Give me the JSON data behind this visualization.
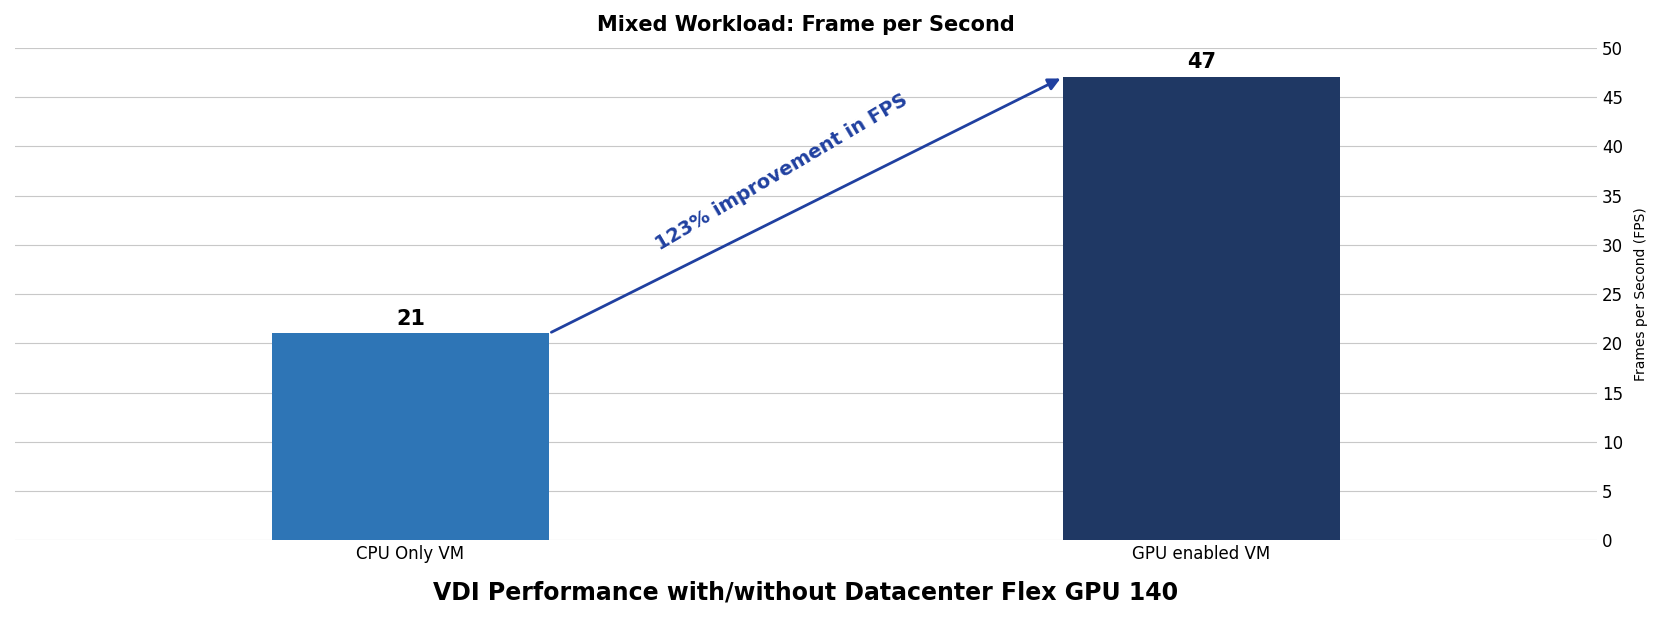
{
  "categories": [
    "CPU Only VM",
    "GPU enabled VM"
  ],
  "values": [
    21,
    47
  ],
  "bar_colors": [
    "#2E75B6",
    "#1F3864"
  ],
  "title": "Mixed Workload: Frame per Second",
  "xlabel": "VDI Performance with/without Datacenter Flex GPU 140",
  "ylabel": "Frames per Second (FPS)",
  "ylim": [
    0,
    50
  ],
  "yticks": [
    0,
    5,
    10,
    15,
    20,
    25,
    30,
    35,
    40,
    45,
    50
  ],
  "annotation_text": "123% improvement in FPS",
  "annotation_color": "#2040A0",
  "title_fontsize": 15,
  "xlabel_fontsize": 17,
  "ylabel_fontsize": 10,
  "bar_label_fontsize": 15,
  "annotation_fontsize": 14,
  "tick_fontsize": 12,
  "xtick_fontsize": 12,
  "background_color": "#ffffff",
  "x_positions": [
    1,
    3
  ],
  "bar_width": 0.7,
  "xlim": [
    0,
    4
  ]
}
